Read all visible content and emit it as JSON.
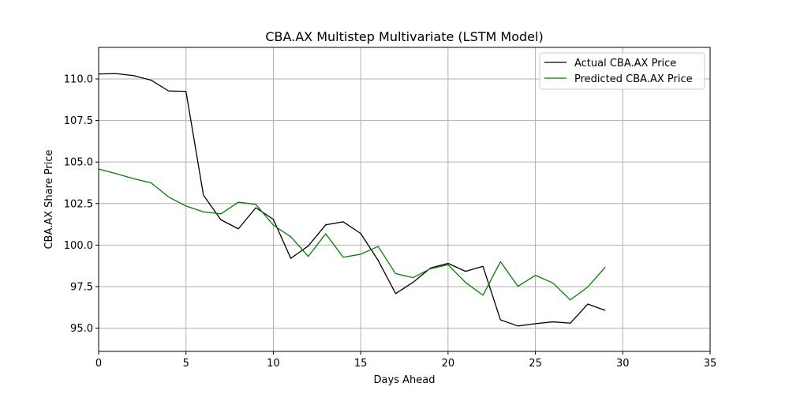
{
  "chart_data": {
    "type": "line",
    "title": "CBA.AX Multistep Multivariate (LSTM Model)",
    "xlabel": "Days Ahead",
    "ylabel": "CBA.AX Share Price",
    "xlim": [
      0,
      35
    ],
    "ylim": [
      93.6,
      111.9
    ],
    "xticks": [
      0,
      5,
      10,
      15,
      20,
      25,
      30,
      35
    ],
    "xtick_labels": [
      "0",
      "5",
      "10",
      "15",
      "20",
      "25",
      "30",
      "35"
    ],
    "yticks": [
      95.0,
      97.5,
      100.0,
      102.5,
      105.0,
      107.5,
      110.0
    ],
    "ytick_labels": [
      "95.0",
      "97.5",
      "100.0",
      "102.5",
      "105.0",
      "107.5",
      "110.0"
    ],
    "grid": true,
    "legend_position": "top-right",
    "x": [
      0,
      1,
      2,
      3,
      4,
      5,
      6,
      7,
      8,
      9,
      10,
      11,
      12,
      13,
      14,
      15,
      16,
      17,
      18,
      19,
      20,
      21,
      22,
      23,
      24,
      25,
      26,
      27,
      28,
      29
    ],
    "series": [
      {
        "name": "Actual CBA.AX Price",
        "color": "#000000",
        "values": [
          110.3,
          110.32,
          110.2,
          109.93,
          109.28,
          109.25,
          103.0,
          101.52,
          100.98,
          102.25,
          101.55,
          99.2,
          99.95,
          101.22,
          101.4,
          100.7,
          99.08,
          97.08,
          97.76,
          98.62,
          98.9,
          98.42,
          98.72,
          95.5,
          95.13,
          95.27,
          95.38,
          95.3,
          96.45,
          96.07
        ]
      },
      {
        "name": "Predicted CBA.AX Price",
        "color": "#008000",
        "values": [
          104.58,
          104.3,
          104.0,
          103.75,
          102.9,
          102.35,
          102.0,
          101.88,
          102.58,
          102.45,
          101.2,
          100.5,
          99.32,
          100.68,
          99.27,
          99.45,
          99.92,
          98.28,
          98.04,
          98.58,
          98.82,
          97.75,
          96.98,
          99.0,
          97.52,
          98.18,
          97.72,
          96.7,
          97.48,
          98.67
        ]
      }
    ]
  }
}
